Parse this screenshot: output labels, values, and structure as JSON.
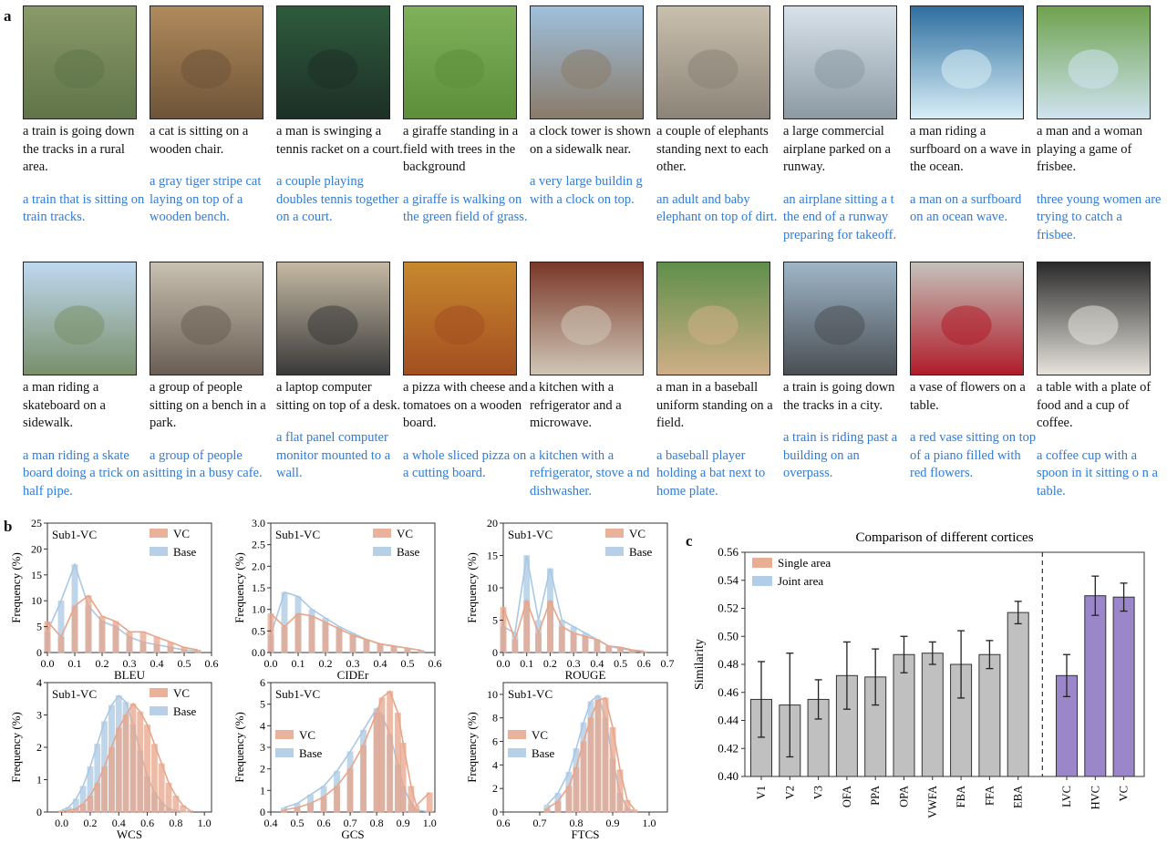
{
  "panel_labels": {
    "a": "a",
    "b": "b",
    "c": "c"
  },
  "thumb_colors": {
    "row1": [
      [
        "#8a9a6a",
        "#5f7448"
      ],
      [
        "#b08a5c",
        "#6e5438"
      ],
      [
        "#2e5b3c",
        "#1d2f26"
      ],
      [
        "#7fb05a",
        "#5d8f3b"
      ],
      [
        "#9fc0dc",
        "#8a7b6a"
      ],
      [
        "#c9bfae",
        "#8c8478"
      ],
      [
        "#d8e2ea",
        "#8c9aa4"
      ],
      [
        "#2e6fa0",
        "#d8eef6"
      ],
      [
        "#6fa24e",
        "#cfe3f0"
      ]
    ],
    "row2": [
      [
        "#bfd8f0",
        "#7a8f6a"
      ],
      [
        "#c8c0b0",
        "#6a5e54"
      ],
      [
        "#c6b9a4",
        "#3a3a3a"
      ],
      [
        "#c8882e",
        "#a34f20"
      ],
      [
        "#7a3828",
        "#cfc6b6"
      ],
      [
        "#5f8f4a",
        "#cfae86"
      ],
      [
        "#9fb6c8",
        "#4a4f54"
      ],
      [
        "#c4c2bb",
        "#b01c2a"
      ],
      [
        "#2a2a2a",
        "#e6e3dc"
      ]
    ]
  },
  "captions": {
    "row1": [
      {
        "gen": "a train is going down the tracks in a rural area.",
        "base": "a train that is sitting on train tracks."
      },
      {
        "gen": "a cat is sitting on a wooden chair.",
        "base": "a gray tiger stripe cat laying on top of a wooden bench."
      },
      {
        "gen": "a man is swinging a tennis racket on a court.",
        "base": "a couple playing doubles tennis together on a court."
      },
      {
        "gen": "a giraffe standing in a field with trees in the background",
        "base": "a giraffe is walking on the green field of grass."
      },
      {
        "gen": "a clock tower is shown on a sidewalk near.",
        "base": "a very large buildin g with a clock on top."
      },
      {
        "gen": "a couple of elephants standing next to each other.",
        "base": "an adult and baby elephant on top of dirt."
      },
      {
        "gen": "a large commercial airplane parked on a runway.",
        "base": "an airplane sitting a t the end of a runway preparing for takeoff."
      },
      {
        "gen": "a man riding a surfboard on a wave in the ocean.",
        "base": "a man on a surfboard on an ocean wave."
      },
      {
        "gen": "a man and a woman playing a game of frisbee.",
        "base": "three young women are trying to catch a frisbee."
      }
    ],
    "row2": [
      {
        "gen": "a man riding a skateboard on a sidewalk.",
        "base": "a man riding a skate board doing a trick on a half pipe."
      },
      {
        "gen": "a group of people sitting on a bench in a park.",
        "base": "a group of people sitting in a busy cafe."
      },
      {
        "gen": "a laptop computer sitting on top of a desk.",
        "base": "a flat panel computer monitor mounted to a wall."
      },
      {
        "gen": "a pizza with cheese and tomatoes on a wooden board.",
        "base": "a whole sliced pizza on a cutting board."
      },
      {
        "gen": "a kitchen with a refrigerator and a microwave.",
        "base": "a kitchen with a refrigerator, stove a nd dishwasher."
      },
      {
        "gen": "a man in a baseball uniform standing on a field.",
        "base": "a baseball player holding a bat next to home plate."
      },
      {
        "gen": "a train is going down the tracks in a city.",
        "base": "a train is riding past a building on an overpass."
      },
      {
        "gen": "a vase of flowers on a table.",
        "base": "a red vase sitting on top of a piano filled with red flowers."
      },
      {
        "gen": "a table with a plate of food and a cup of coffee.",
        "base": "a coffee cup with a spoon in it sitting o n a table."
      }
    ]
  },
  "chart_data": [
    {
      "type": "histogram",
      "id": "bleu",
      "tag": "Sub1-VC",
      "xlabel": "BLEU",
      "ylabel": "Frequency (%)",
      "xlim": [
        0,
        0.6
      ],
      "ylim": [
        0,
        25
      ],
      "xticks": [
        "0.0",
        "0.1",
        "0.2",
        "0.3",
        "0.4",
        "0.5",
        "0.6"
      ],
      "yticks": [
        "0",
        "5",
        "10",
        "15",
        "20",
        "25"
      ],
      "legend": [
        "VC",
        "Base"
      ],
      "colors": [
        "#e8a58a",
        "#a9c8e4"
      ],
      "series": [
        {
          "name": "VC",
          "x": [
            0.0,
            0.05,
            0.1,
            0.15,
            0.2,
            0.25,
            0.3,
            0.35,
            0.4,
            0.45,
            0.5,
            0.55
          ],
          "values": [
            6,
            3,
            9,
            11,
            7,
            6,
            4,
            4,
            3,
            2,
            1,
            0.5
          ]
        },
        {
          "name": "Base",
          "x": [
            0.0,
            0.05,
            0.1,
            0.15,
            0.2,
            0.25,
            0.3,
            0.35,
            0.4,
            0.45,
            0.5,
            0.55
          ],
          "values": [
            4,
            10,
            17,
            9,
            6,
            5,
            3,
            2,
            1.5,
            1,
            0.5,
            0.3
          ]
        }
      ]
    },
    {
      "type": "histogram",
      "id": "cider",
      "tag": "Sub1-VC",
      "xlabel": "CIDEr",
      "ylabel": "Frequency (%)",
      "xlim": [
        0,
        0.6
      ],
      "ylim": [
        0,
        3.0
      ],
      "xticks": [
        "0.0",
        "0.1",
        "0.2",
        "0.3",
        "0.4",
        "0.5",
        "0.6"
      ],
      "yticks": [
        "0.0",
        "0.5",
        "1.0",
        "1.5",
        "2.0",
        "2.5",
        "3.0"
      ],
      "legend": [
        "VC",
        "Base"
      ],
      "colors": [
        "#e8a58a",
        "#a9c8e4"
      ],
      "series": [
        {
          "name": "VC",
          "x": [
            0.0,
            0.05,
            0.1,
            0.15,
            0.2,
            0.25,
            0.3,
            0.35,
            0.4,
            0.45,
            0.5,
            0.55
          ],
          "values": [
            0.9,
            0.6,
            0.9,
            0.85,
            0.7,
            0.55,
            0.4,
            0.3,
            0.2,
            0.15,
            0.1,
            0.05
          ]
        },
        {
          "name": "Base",
          "x": [
            0.0,
            0.05,
            0.1,
            0.15,
            0.2,
            0.25,
            0.3,
            0.35,
            0.4,
            0.45,
            0.5,
            0.55
          ],
          "values": [
            0.4,
            1.4,
            1.3,
            1.0,
            0.8,
            0.6,
            0.45,
            0.3,
            0.2,
            0.15,
            0.1,
            0.05
          ]
        }
      ]
    },
    {
      "type": "histogram",
      "id": "rouge",
      "tag": "Sub1-VC",
      "xlabel": "ROUGE",
      "ylabel": "Frequency (%)",
      "xlim": [
        0,
        0.7
      ],
      "ylim": [
        0,
        20
      ],
      "xticks": [
        "0.0",
        "0.1",
        "0.2",
        "0.3",
        "0.4",
        "0.5",
        "0.6",
        "0.7"
      ],
      "yticks": [
        "0",
        "5",
        "10",
        "15",
        "20"
      ],
      "legend": [
        "VC",
        "Base"
      ],
      "colors": [
        "#e8a58a",
        "#a9c8e4"
      ],
      "series": [
        {
          "name": "VC",
          "x": [
            0.0,
            0.05,
            0.1,
            0.15,
            0.2,
            0.25,
            0.3,
            0.35,
            0.4,
            0.45,
            0.5,
            0.55,
            0.6
          ],
          "values": [
            7,
            2,
            8,
            3,
            8,
            4,
            3,
            2.5,
            2,
            1,
            0.8,
            0.4,
            0.2
          ]
        },
        {
          "name": "Base",
          "x": [
            0.0,
            0.05,
            0.1,
            0.15,
            0.2,
            0.25,
            0.3,
            0.35,
            0.4,
            0.45,
            0.5,
            0.55,
            0.6
          ],
          "values": [
            4,
            3,
            15,
            5,
            13,
            5,
            4,
            3,
            2,
            1,
            0.6,
            0.3,
            0.1
          ]
        }
      ]
    },
    {
      "type": "histogram",
      "id": "wcs",
      "tag": "Sub1-VC",
      "xlabel": "WCS",
      "ylabel": "Frequency (%)",
      "xlim": [
        -0.1,
        1.05
      ],
      "ylim": [
        0,
        4
      ],
      "xticks": [
        "0.0",
        "0.2",
        "0.4",
        "0.6",
        "0.8",
        "1.0"
      ],
      "yticks": [
        "0",
        "1",
        "2",
        "3",
        "4"
      ],
      "legend": [
        "VC",
        "Base"
      ],
      "colors": [
        "#e8a58a",
        "#a9c8e4"
      ],
      "series": [
        {
          "name": "VC",
          "x": [
            0.0,
            0.05,
            0.1,
            0.15,
            0.2,
            0.25,
            0.3,
            0.35,
            0.4,
            0.45,
            0.5,
            0.55,
            0.6,
            0.65,
            0.7,
            0.75,
            0.8,
            0.85,
            0.9
          ],
          "values": [
            0.02,
            0.05,
            0.1,
            0.25,
            0.5,
            0.9,
            1.4,
            2.0,
            2.6,
            3.0,
            3.35,
            3.1,
            2.7,
            2.1,
            1.5,
            0.9,
            0.5,
            0.2,
            0.05
          ]
        },
        {
          "name": "Base",
          "x": [
            0.0,
            0.05,
            0.1,
            0.15,
            0.2,
            0.25,
            0.3,
            0.35,
            0.4,
            0.45,
            0.5,
            0.55,
            0.6,
            0.65,
            0.7,
            0.75,
            0.8,
            0.85,
            0.9
          ],
          "values": [
            0.05,
            0.15,
            0.4,
            0.8,
            1.4,
            2.1,
            2.8,
            3.3,
            3.6,
            3.4,
            2.7,
            1.9,
            1.1,
            0.6,
            0.3,
            0.1,
            0.04,
            0.01,
            0
          ]
        }
      ]
    },
    {
      "type": "histogram",
      "id": "gcs",
      "tag": "Sub1-VC",
      "xlabel": "GCS",
      "ylabel": "Frequency (%)",
      "xlim": [
        0.4,
        1.02
      ],
      "ylim": [
        0,
        6
      ],
      "xticks": [
        "0.4",
        "0.5",
        "0.6",
        "0.7",
        "0.8",
        "0.9",
        "1.0"
      ],
      "yticks": [
        "0",
        "1",
        "2",
        "3",
        "4",
        "5",
        "6"
      ],
      "legend": [
        "VC",
        "Base"
      ],
      "colors": [
        "#e8a58a",
        "#a9c8e4"
      ],
      "series": [
        {
          "name": "VC",
          "x": [
            0.45,
            0.5,
            0.55,
            0.6,
            0.65,
            0.7,
            0.75,
            0.8,
            0.82,
            0.85,
            0.88,
            0.9,
            0.93,
            0.95,
            1.0
          ],
          "values": [
            0.1,
            0.2,
            0.4,
            0.7,
            1.2,
            2.0,
            3.1,
            4.6,
            5.3,
            5.6,
            4.6,
            3.2,
            1.2,
            0.3,
            0.9
          ]
        },
        {
          "name": "Base",
          "x": [
            0.45,
            0.5,
            0.55,
            0.6,
            0.65,
            0.7,
            0.75,
            0.8,
            0.82,
            0.85,
            0.88,
            0.9,
            0.93,
            0.95,
            1.0
          ],
          "values": [
            0.2,
            0.4,
            0.8,
            1.2,
            1.9,
            2.8,
            3.8,
            4.8,
            4.5,
            3.6,
            2.2,
            1.2,
            0.4,
            0.1,
            0
          ]
        }
      ]
    },
    {
      "type": "histogram",
      "id": "ftcs",
      "tag": "Sub1-VC",
      "xlabel": "FTCS",
      "ylabel": "Frequency (%)",
      "xlim": [
        0.6,
        1.05
      ],
      "ylim": [
        0,
        11
      ],
      "xticks": [
        "0.6",
        "0.7",
        "0.8",
        "0.9",
        "1.0"
      ],
      "yticks": [
        "0",
        "2",
        "4",
        "6",
        "8",
        "10"
      ],
      "legend": [
        "VC",
        "Base"
      ],
      "colors": [
        "#e8a58a",
        "#a9c8e4"
      ],
      "series": [
        {
          "name": "VC",
          "x": [
            0.72,
            0.75,
            0.78,
            0.8,
            0.82,
            0.84,
            0.86,
            0.88,
            0.9,
            0.92,
            0.94,
            0.96
          ],
          "values": [
            0.3,
            0.9,
            2.2,
            3.8,
            6.0,
            8.0,
            9.5,
            9.7,
            7.2,
            3.6,
            1.0,
            0.2
          ]
        },
        {
          "name": "Base",
          "x": [
            0.72,
            0.75,
            0.78,
            0.8,
            0.82,
            0.84,
            0.86,
            0.88,
            0.9,
            0.92,
            0.94,
            0.96
          ],
          "values": [
            0.6,
            1.6,
            3.4,
            5.4,
            7.6,
            9.4,
            9.9,
            8.0,
            4.5,
            1.6,
            0.3,
            0.05
          ]
        }
      ]
    },
    {
      "type": "bar",
      "id": "cortices",
      "title": "Comparison of different cortices",
      "ylabel": "Similarity",
      "ylim": [
        0.4,
        0.56
      ],
      "yticks": [
        "0.40",
        "0.42",
        "0.44",
        "0.46",
        "0.48",
        "0.50",
        "0.52",
        "0.54",
        "0.56"
      ],
      "legend": [
        "Single area",
        "Joint area"
      ],
      "legend_colors": [
        "#e8a58a",
        "#a9c8e4"
      ],
      "categories": [
        "V1",
        "V2",
        "V3",
        "OFA",
        "PPA",
        "OPA",
        "VWFA",
        "FBA",
        "FFA",
        "EBA",
        "LVC",
        "HVC",
        "VC"
      ],
      "values": [
        0.455,
        0.451,
        0.455,
        0.472,
        0.471,
        0.487,
        0.488,
        0.48,
        0.487,
        0.517,
        0.472,
        0.529,
        0.528
      ],
      "errors": [
        0.027,
        0.037,
        0.014,
        0.024,
        0.02,
        0.013,
        0.008,
        0.024,
        0.01,
        0.008,
        0.015,
        0.014,
        0.01
      ],
      "colors": [
        "#c0c0c0",
        "#c0c0c0",
        "#c0c0c0",
        "#c0c0c0",
        "#c0c0c0",
        "#c0c0c0",
        "#c0c0c0",
        "#c0c0c0",
        "#c0c0c0",
        "#c0c0c0",
        "#9a86c8",
        "#9a86c8",
        "#9a86c8"
      ]
    }
  ]
}
